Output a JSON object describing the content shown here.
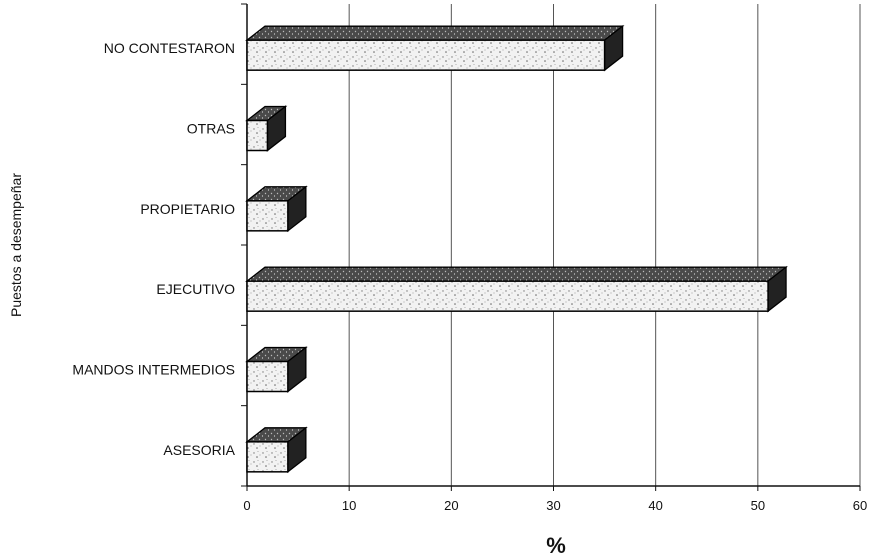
{
  "chart_data": {
    "type": "bar",
    "orientation": "horizontal",
    "categories": [
      "NO CONTESTARON",
      "OTRAS",
      "PROPIETARIO",
      "EJECUTIVO",
      "MANDOS INTERMEDIOS",
      "ASESORIA"
    ],
    "values": [
      35,
      2,
      4,
      51,
      4,
      4
    ],
    "xlabel": "%",
    "ylabel": "Puestos a desempeñar",
    "xlim": [
      0,
      60
    ],
    "xticks": [
      0,
      10,
      20,
      30,
      40,
      50,
      60
    ],
    "grid": "vertical",
    "legend": "none",
    "bar_style": "3d-stippled",
    "colors": {
      "front": "#eeeeee",
      "top": "#5a5a5a",
      "side": "#222222",
      "outline": "#000000"
    }
  }
}
